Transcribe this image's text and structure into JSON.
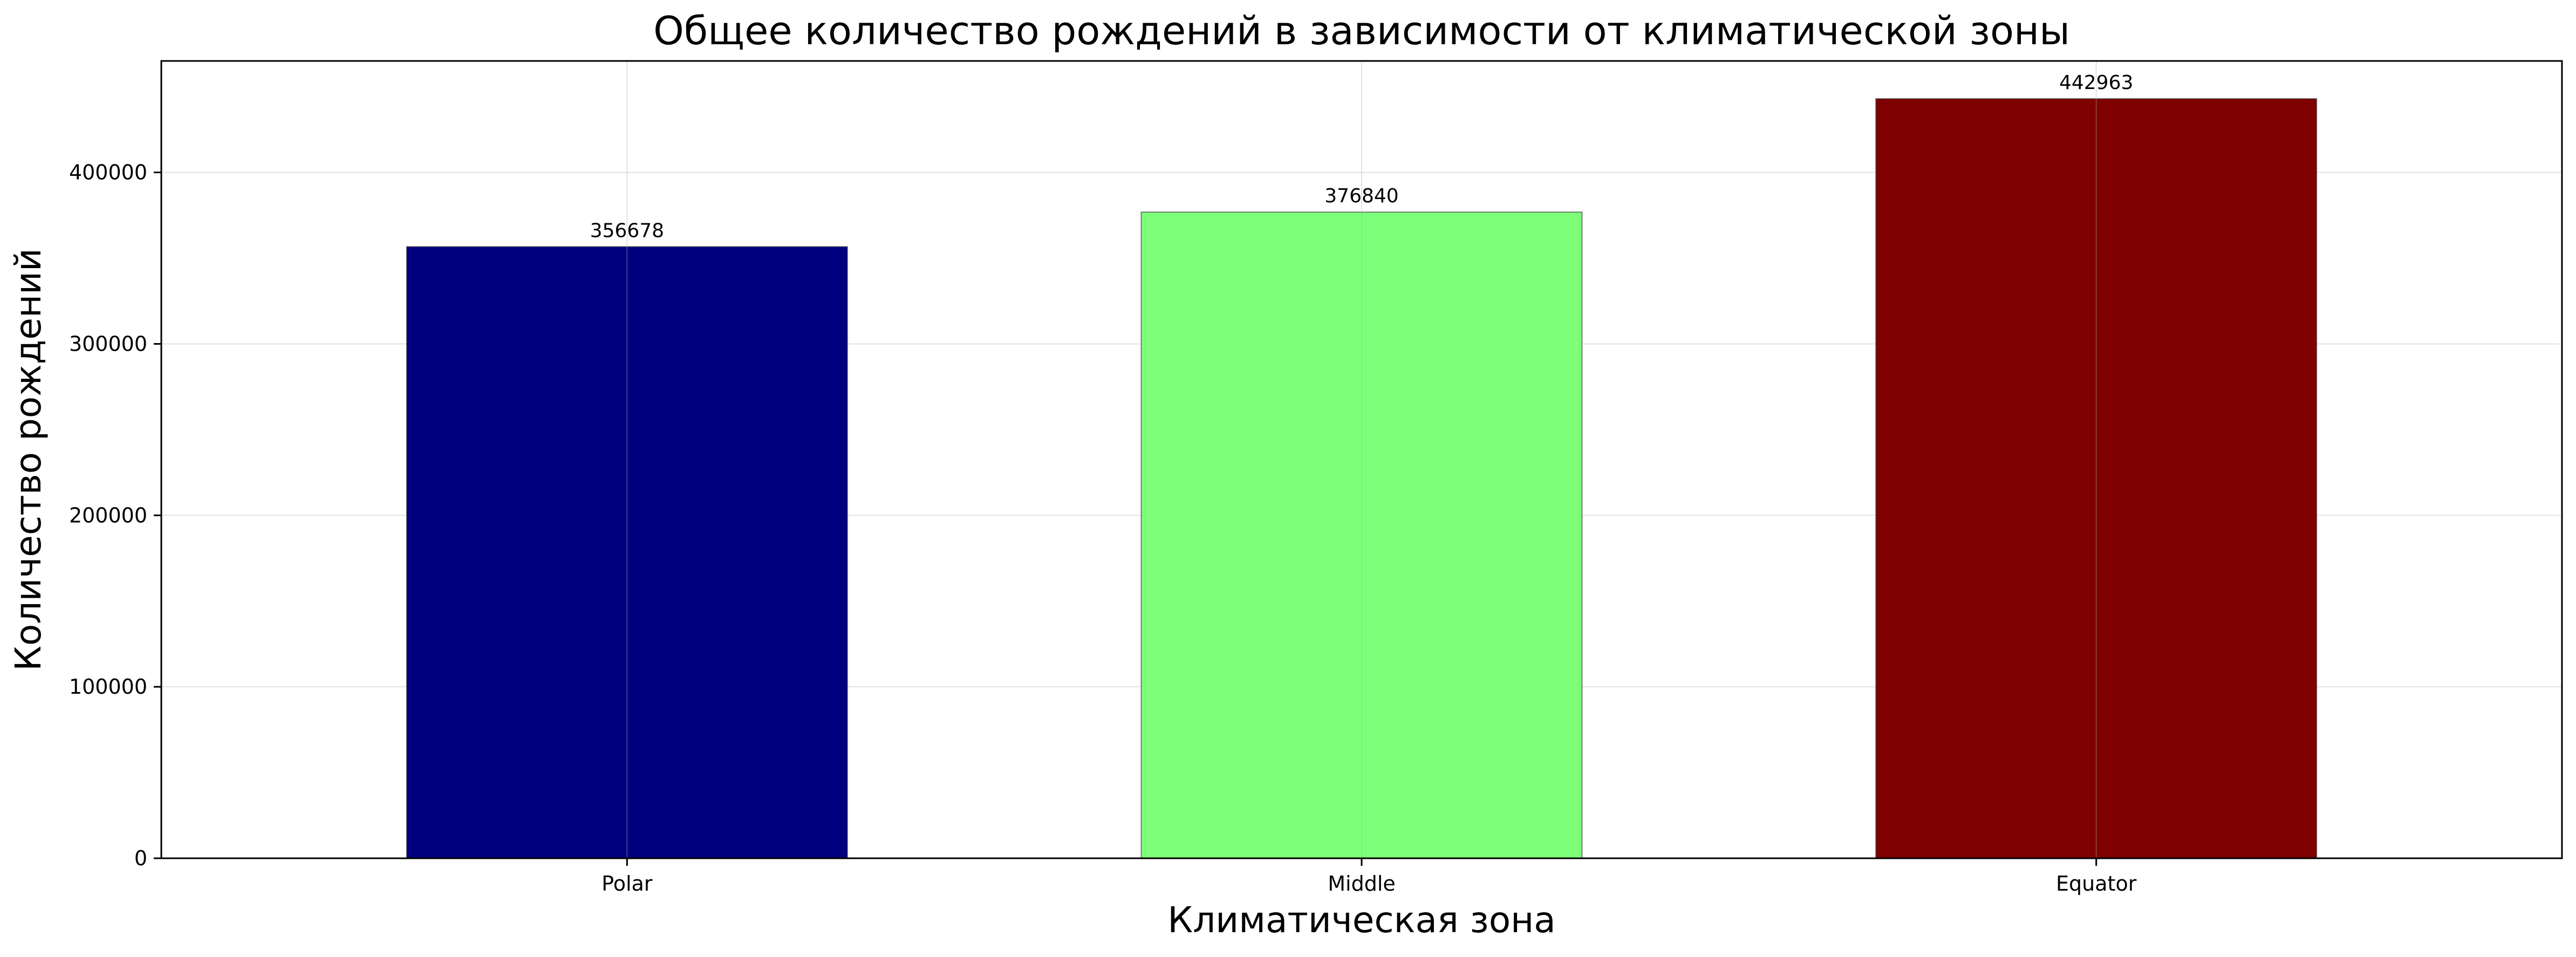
{
  "chart_data": {
    "type": "bar",
    "title": "Общее количество рождений в зависимости от климатической зоны",
    "xlabel": "Климатическая зона",
    "ylabel": "Количество рождений",
    "categories": [
      "Polar",
      "Middle",
      "Equator"
    ],
    "values": [
      356678,
      376840,
      442963
    ],
    "data_labels": [
      "356678",
      "376840",
      "442963"
    ],
    "colors": [
      "#00007f",
      "#7dff7a",
      "#7f0000"
    ],
    "ylim": [
      0,
      465000
    ],
    "yticks": [
      0,
      100000,
      200000,
      300000,
      400000
    ],
    "ytick_labels": [
      "0",
      "100000",
      "200000",
      "300000",
      "400000"
    ],
    "grid": true,
    "legend": "none"
  }
}
